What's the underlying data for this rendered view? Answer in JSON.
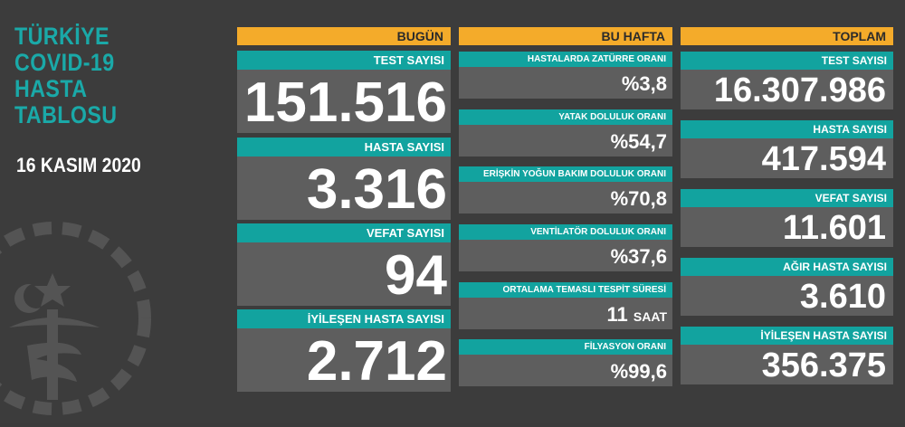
{
  "header": {
    "title": "TÜRKİYE\nCOVID-19\nHASTA\nTABLOSU",
    "date": "16 KASIM 2020"
  },
  "colors": {
    "accent_teal": "#12a39f",
    "header_orange": "#f4ab2a",
    "panel_gray": "#5e5e5e",
    "background": "#3c3c3c"
  },
  "emblem": {
    "icon": "ministry-of-health-emblem-icon"
  },
  "today": {
    "heading": "BUGÜN",
    "items": [
      {
        "label": "TEST SAYISI",
        "value": "151.516"
      },
      {
        "label": "HASTA SAYISI",
        "value": "3.316"
      },
      {
        "label": "VEFAT SAYISI",
        "value": "94"
      },
      {
        "label": "İYİLEŞEN HASTA SAYISI",
        "value": "2.712"
      }
    ]
  },
  "week": {
    "heading": "BU HAFTA",
    "items": [
      {
        "label": "HASTALARDA ZATÜRRE ORANI",
        "value": "%3,8"
      },
      {
        "label": "YATAK DOLULUK ORANI",
        "value": "%54,7"
      },
      {
        "label": "ERİŞKİN YOĞUN BAKIM DOLULUK ORANI",
        "value": "%70,8"
      },
      {
        "label": "VENTİLATÖR DOLULUK ORANI",
        "value": "%37,6"
      },
      {
        "label": "ORTALAMA TEMASLI TESPİT SÜRESİ",
        "value": "11",
        "unit": "SAAT"
      },
      {
        "label": "FİLYASYON ORANI",
        "value": "%99,6"
      }
    ]
  },
  "total": {
    "heading": "TOPLAM",
    "items": [
      {
        "label": "TEST SAYISI",
        "value": "16.307.986"
      },
      {
        "label": "HASTA SAYISI",
        "value": "417.594"
      },
      {
        "label": "VEFAT SAYISI",
        "value": "11.601"
      },
      {
        "label": "AĞIR HASTA SAYISI",
        "value": "3.610"
      },
      {
        "label": "İYİLEŞEN HASTA SAYISI",
        "value": "356.375"
      }
    ]
  }
}
